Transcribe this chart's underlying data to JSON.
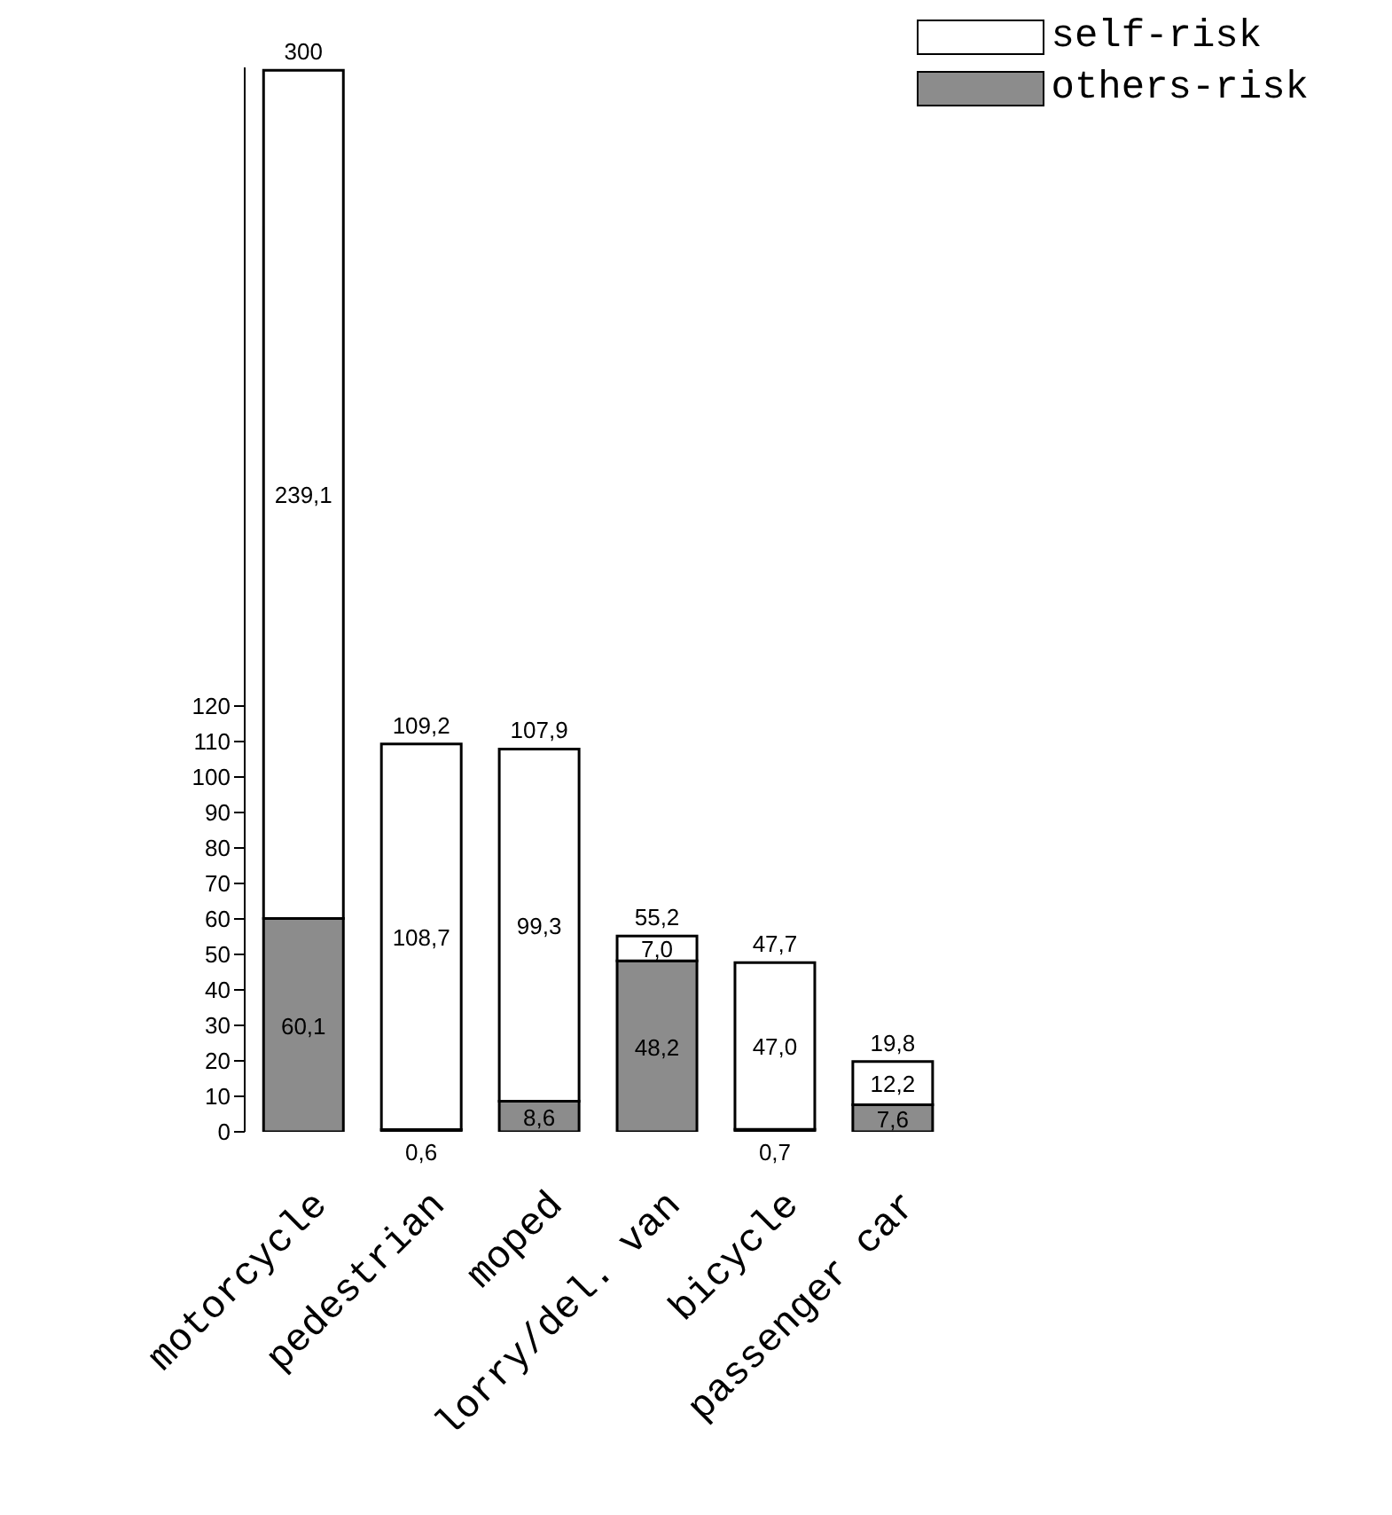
{
  "chart_data": {
    "type": "bar",
    "stacked": true,
    "categories": [
      "motorcycle",
      "pedestrian",
      "moped",
      "lorry/del. van",
      "bicycle",
      "passenger car"
    ],
    "series": [
      {
        "name": "others-risk",
        "color": "#8c8c8c",
        "values": [
          60.1,
          0.6,
          8.6,
          48.2,
          0.7,
          7.6
        ],
        "value_labels": [
          "60,1",
          "0,6",
          "8,6",
          "48,2",
          "0,7",
          "7,6"
        ]
      },
      {
        "name": "self-risk",
        "color": "#ffffff",
        "values": [
          239.1,
          108.7,
          99.3,
          7.0,
          47.0,
          12.2
        ],
        "value_labels": [
          "239,1",
          "108,7",
          "99,3",
          "7,0",
          "47,0",
          "12,2"
        ]
      }
    ],
    "totals": [
      "300",
      "109,2",
      "107,9",
      "55,2",
      "47,7",
      "19,8"
    ],
    "ylim": [
      0,
      300
    ],
    "yticks": [
      0,
      10,
      20,
      30,
      40,
      50,
      60,
      70,
      80,
      90,
      100,
      110,
      120
    ],
    "grid": false,
    "legend": "top right"
  }
}
